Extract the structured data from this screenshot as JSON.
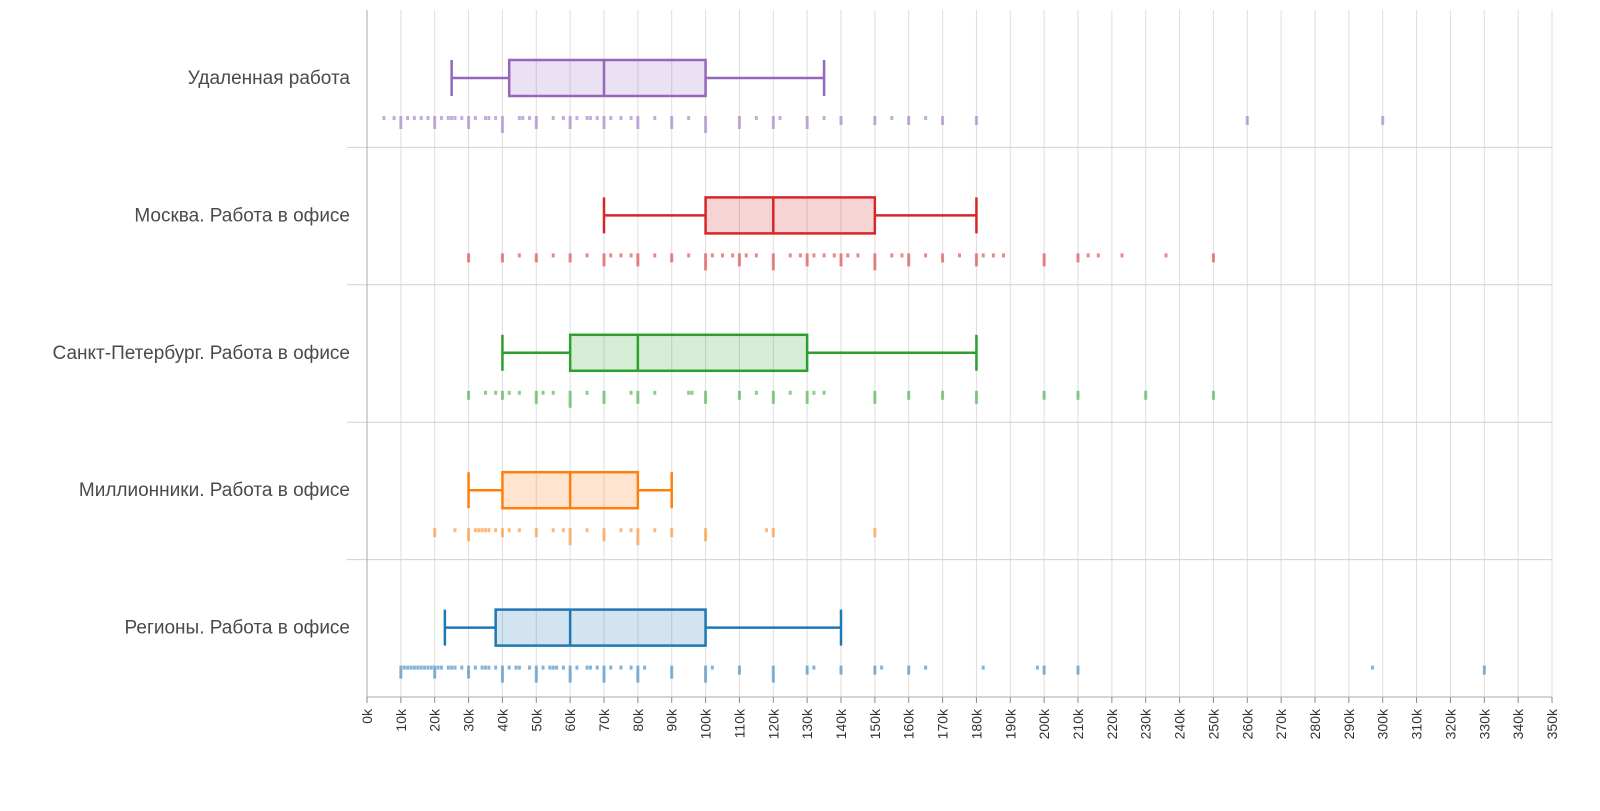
{
  "chart_data": {
    "type": "boxplot",
    "title": "",
    "xlabel": "",
    "ylabel": "",
    "xlim": [
      0,
      350000
    ],
    "x_ticks": [
      0,
      10000,
      20000,
      30000,
      40000,
      50000,
      60000,
      70000,
      80000,
      90000,
      100000,
      110000,
      120000,
      130000,
      140000,
      150000,
      160000,
      170000,
      180000,
      190000,
      200000,
      210000,
      220000,
      230000,
      240000,
      250000,
      260000,
      270000,
      280000,
      290000,
      300000,
      310000,
      320000,
      330000,
      340000,
      350000
    ],
    "x_tick_labels": [
      "0k",
      "10k",
      "20k",
      "30k",
      "40k",
      "50k",
      "60k",
      "70k",
      "80k",
      "90k",
      "100k",
      "110k",
      "120k",
      "130k",
      "140k",
      "150k",
      "160k",
      "170k",
      "180k",
      "190k",
      "200k",
      "210k",
      "220k",
      "230k",
      "240k",
      "250k",
      "260k",
      "270k",
      "280k",
      "290k",
      "300k",
      "310k",
      "320k",
      "330k",
      "340k",
      "350k"
    ],
    "grid": true,
    "series": [
      {
        "name": "Удаленная работа",
        "color": "#9467bd",
        "whisker_low": 25000,
        "q1": 42000,
        "median": 70000,
        "q3": 100000,
        "whisker_high": 135000,
        "points": [
          5000,
          8000,
          10000,
          10000,
          12000,
          14000,
          16000,
          18000,
          20000,
          20000,
          22000,
          24000,
          25000,
          26000,
          28000,
          30000,
          30000,
          32000,
          35000,
          36000,
          38000,
          40000,
          40000,
          40000,
          45000,
          46000,
          48000,
          50000,
          50000,
          55000,
          58000,
          60000,
          60000,
          62000,
          65000,
          66000,
          68000,
          70000,
          70000,
          72000,
          75000,
          78000,
          80000,
          80000,
          85000,
          90000,
          90000,
          95000,
          100000,
          100000,
          100000,
          110000,
          110000,
          115000,
          120000,
          120000,
          122000,
          130000,
          130000,
          135000,
          140000,
          150000,
          155000,
          160000,
          165000,
          170000,
          180000,
          260000,
          300000
        ]
      },
      {
        "name": "Москва. Работа в офисе",
        "color": "#d62728",
        "whisker_low": 70000,
        "q1": 100000,
        "median": 120000,
        "q3": 150000,
        "whisker_high": 180000,
        "points": [
          30000,
          40000,
          45000,
          50000,
          55000,
          60000,
          65000,
          70000,
          70000,
          72000,
          75000,
          78000,
          80000,
          80000,
          85000,
          90000,
          95000,
          100000,
          100000,
          100000,
          102000,
          105000,
          108000,
          110000,
          110000,
          112000,
          115000,
          120000,
          120000,
          120000,
          125000,
          128000,
          130000,
          130000,
          132000,
          135000,
          138000,
          140000,
          140000,
          142000,
          145000,
          150000,
          150000,
          150000,
          155000,
          158000,
          160000,
          160000,
          165000,
          170000,
          175000,
          180000,
          180000,
          182000,
          185000,
          188000,
          200000,
          200000,
          210000,
          213000,
          216000,
          223000,
          236000,
          250000
        ]
      },
      {
        "name": "Санкт-Петербург. Работа в офисе",
        "color": "#2ca02c",
        "whisker_low": 40000,
        "q1": 60000,
        "median": 80000,
        "q3": 130000,
        "whisker_high": 180000,
        "points": [
          30000,
          35000,
          35000,
          38000,
          40000,
          42000,
          45000,
          50000,
          50000,
          52000,
          55000,
          60000,
          60000,
          60000,
          65000,
          70000,
          70000,
          78000,
          80000,
          80000,
          85000,
          95000,
          96000,
          100000,
          100000,
          110000,
          115000,
          120000,
          120000,
          125000,
          130000,
          130000,
          132000,
          135000,
          150000,
          150000,
          160000,
          170000,
          180000,
          180000,
          200000,
          210000,
          230000,
          250000
        ]
      },
      {
        "name": "Миллионники. Работа в офисе",
        "color": "#ff7f0e",
        "whisker_low": 30000,
        "q1": 40000,
        "median": 60000,
        "q3": 80000,
        "whisker_high": 90000,
        "points": [
          20000,
          26000,
          30000,
          30000,
          32000,
          33000,
          34000,
          35000,
          35000,
          36000,
          38000,
          40000,
          42000,
          45000,
          45000,
          50000,
          55000,
          55000,
          58000,
          60000,
          60000,
          60000,
          65000,
          70000,
          70000,
          75000,
          78000,
          80000,
          80000,
          80000,
          85000,
          90000,
          100000,
          100000,
          118000,
          120000,
          150000
        ]
      },
      {
        "name": "Регионы. Работа в офисе",
        "color": "#1f77b4",
        "whisker_low": 23000,
        "q1": 38000,
        "median": 60000,
        "q3": 100000,
        "whisker_high": 140000,
        "points": [
          10000,
          10000,
          11000,
          12000,
          13000,
          14000,
          15000,
          16000,
          17000,
          18000,
          19000,
          20000,
          20000,
          21000,
          22000,
          24000,
          25000,
          25000,
          26000,
          28000,
          30000,
          30000,
          32000,
          34000,
          35000,
          36000,
          38000,
          40000,
          40000,
          40000,
          42000,
          44000,
          45000,
          45000,
          48000,
          50000,
          50000,
          50000,
          52000,
          54000,
          55000,
          56000,
          58000,
          60000,
          60000,
          60000,
          62000,
          65000,
          65000,
          66000,
          68000,
          70000,
          70000,
          70000,
          72000,
          75000,
          78000,
          80000,
          80000,
          80000,
          82000,
          90000,
          90000,
          100000,
          100000,
          100000,
          102000,
          110000,
          120000,
          120000,
          120000,
          130000,
          132000,
          140000,
          150000,
          152000,
          160000,
          165000,
          182000,
          198000,
          200000,
          210000,
          297000,
          330000
        ]
      }
    ]
  }
}
